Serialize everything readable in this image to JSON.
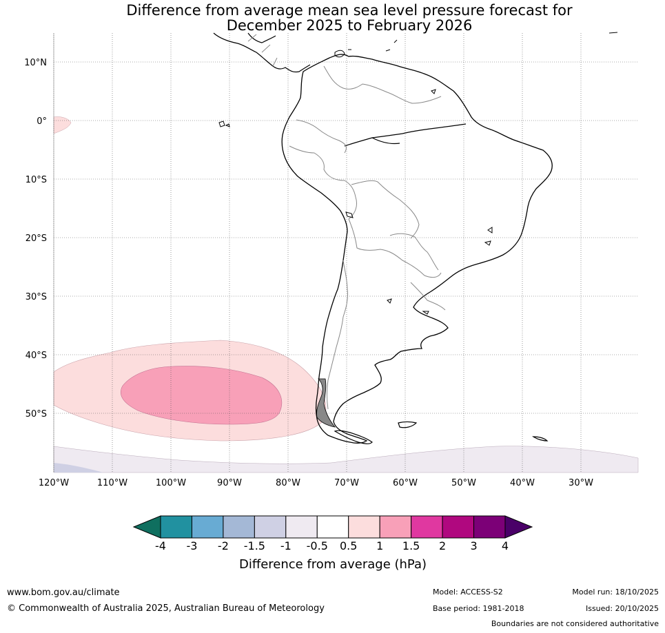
{
  "title": {
    "line1": "Difference from average mean sea level pressure forecast for",
    "line2": "December 2025 to February 2026"
  },
  "map": {
    "lat_labels": [
      "10°N",
      "0°",
      "10°S",
      "20°S",
      "30°S",
      "40°S",
      "50°S"
    ],
    "lon_labels": [
      "120°W",
      "110°W",
      "100°W",
      "90°W",
      "80°W",
      "70°W",
      "60°W",
      "50°W",
      "40°W",
      "30°W"
    ]
  },
  "colorbar": {
    "title": "Difference from average (hPa)",
    "ticks": [
      "-4",
      "-3",
      "-2",
      "-1.5",
      "-1",
      "-0.5",
      "0.5",
      "1",
      "1.5",
      "2",
      "3",
      "4"
    ],
    "colors": [
      "#0f6f5f",
      "#2191a0",
      "#68abd3",
      "#a4b8d6",
      "#cfd0e4",
      "#efeaf1",
      "#ffffff",
      "#fcdddd",
      "#f8a0b8",
      "#e038a0",
      "#b0087f",
      "#7c0077",
      "#4a0068"
    ]
  },
  "footer": {
    "url": "www.bom.gov.au/climate",
    "copyright": "© Commonwealth of Australia 2025, Australian Bureau of Meteorology",
    "model": "Model: ACCESS-S2",
    "base_period": "Base period: 1981-2018",
    "model_run": "Model run: 18/10/2025",
    "issued": "Issued: 20/10/2025",
    "boundaries": "Boundaries are not considered authoritative"
  }
}
